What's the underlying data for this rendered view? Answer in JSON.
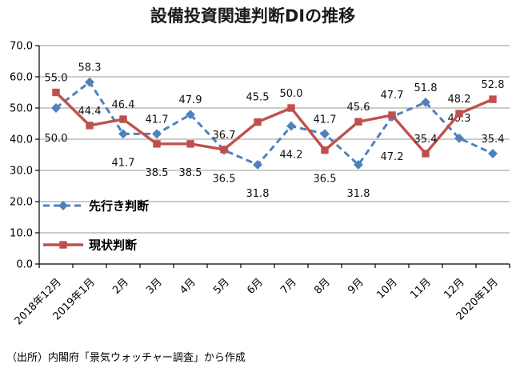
{
  "footer": {
    "source_note": "（出所）内閣府「景気ウォッチャー調査」から作成"
  },
  "chart_data": {
    "type": "line",
    "title": "設備投資関連判断DIの推移",
    "xlabel": "",
    "ylabel": "",
    "ylim": [
      0,
      70
    ],
    "ytick_step": 10,
    "ytick_labels": [
      "0.0",
      "10.0",
      "20.0",
      "30.0",
      "40.0",
      "50.0",
      "60.0",
      "70.0"
    ],
    "grid": true,
    "legend_position": "inside-left",
    "categories": [
      "2018年12月",
      "2019年1月",
      "2月",
      "3月",
      "4月",
      "5月",
      "6月",
      "7月",
      "8月",
      "9月",
      "10月",
      "11月",
      "12月",
      "2020年1月"
    ],
    "series": [
      {
        "name": "先行き判断",
        "color": "#4F81BD",
        "dash": "dashed",
        "marker": "diamond",
        "values": [
          50.0,
          58.3,
          41.7,
          41.7,
          47.9,
          36.5,
          31.8,
          44.2,
          41.7,
          31.8,
          47.2,
          51.8,
          40.3,
          35.4
        ],
        "label_pos": [
          42,
          "above",
          "below",
          "above",
          "above",
          "below",
          "below",
          "below",
          "above",
          "below",
          54,
          "above",
          -21,
          "above"
        ]
      },
      {
        "name": "現状判断",
        "color": "#C0504D",
        "dash": "solid",
        "marker": "square",
        "values": [
          55.0,
          44.4,
          46.4,
          38.5,
          38.5,
          36.7,
          45.5,
          50.0,
          36.5,
          45.6,
          47.7,
          35.4,
          48.2,
          52.8
        ],
        "label_pos": [
          "above",
          "above",
          "above",
          "below",
          "below",
          "above",
          -27,
          "above",
          "below",
          "above",
          -21,
          "above",
          "above",
          "above"
        ]
      }
    ]
  }
}
